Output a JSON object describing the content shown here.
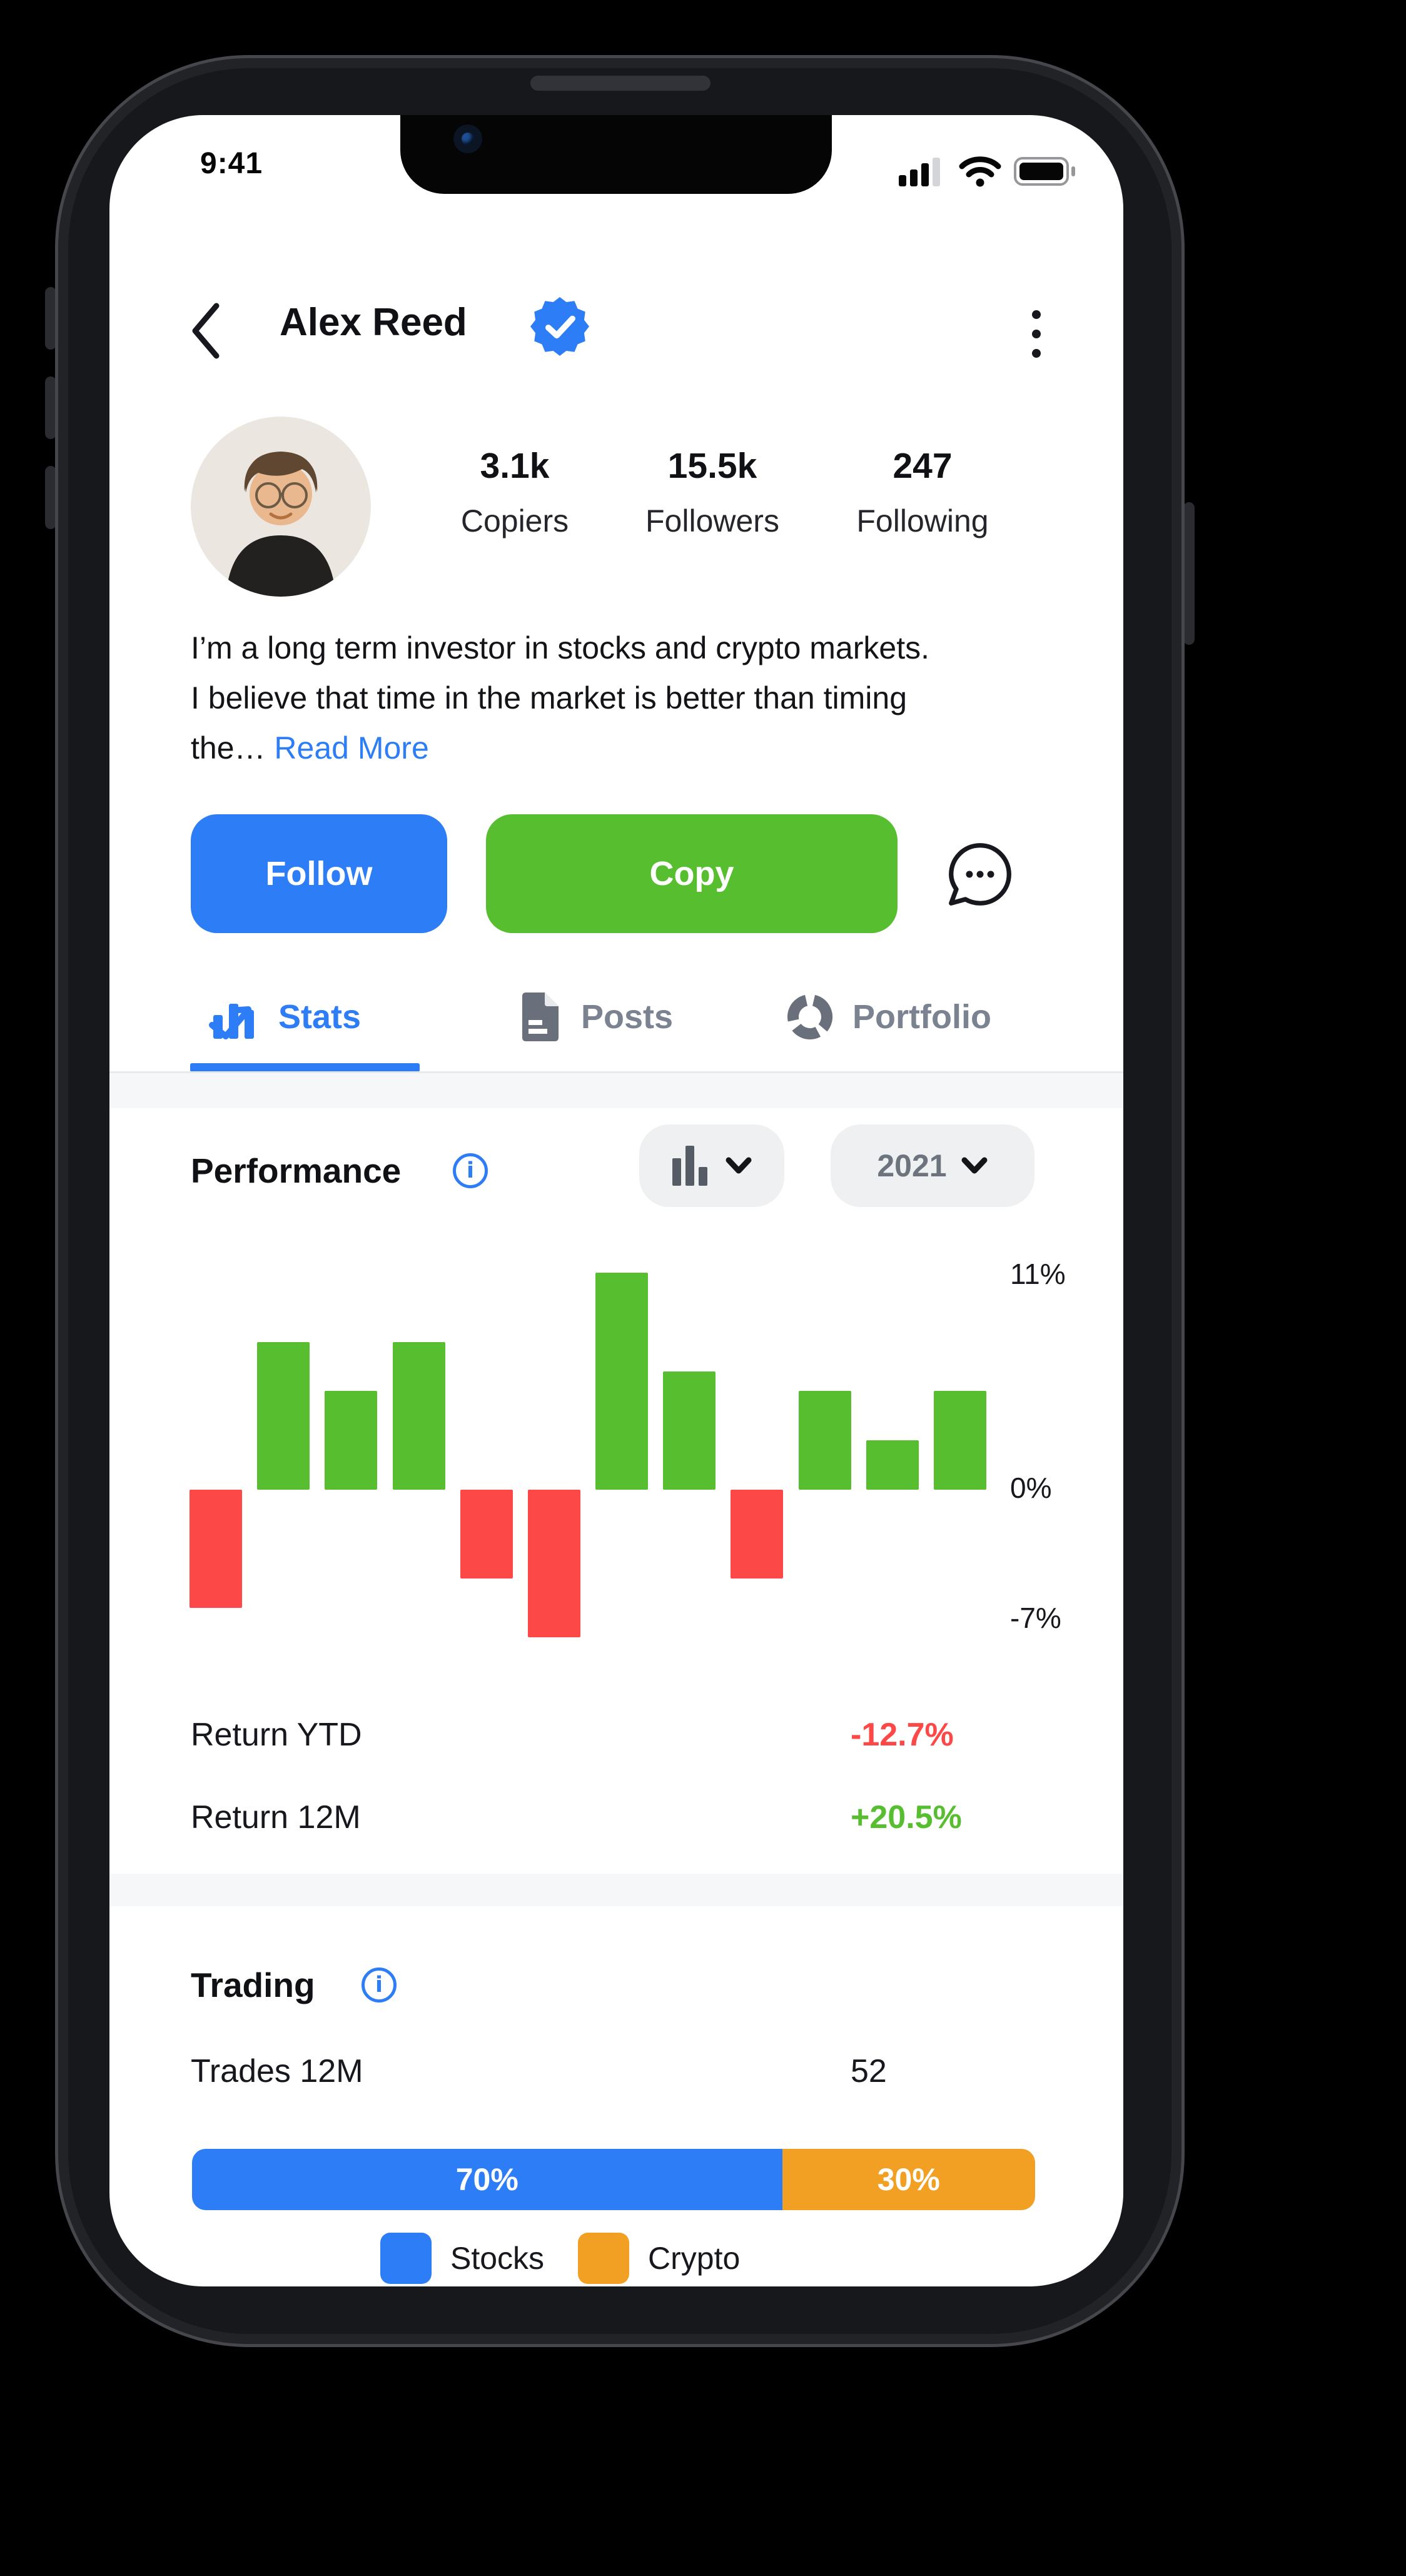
{
  "colors": {
    "accent_blue": "#2d7df6",
    "positive_green": "#57be2f",
    "negative_red": "#fd4848",
    "crypto_orange": "#f2a024",
    "inactive_gray": "#7b8290"
  },
  "status_bar": {
    "time": "9:41",
    "icons": [
      "cellular-signal-icon",
      "wifi-icon",
      "battery-icon"
    ]
  },
  "header": {
    "title": "Alex Reed",
    "verified": true,
    "icons": [
      "back-chevron-icon",
      "verified-badge-icon",
      "kebab-menu-icon"
    ]
  },
  "profile": {
    "stats": [
      {
        "value": "3.1k",
        "label": "Copiers"
      },
      {
        "value": "15.5k",
        "label": "Followers"
      },
      {
        "value": "247",
        "label": "Following"
      }
    ],
    "bio": "I’m a long term investor in stocks and crypto markets. I believe that time in the market is better than timing the…",
    "read_more": "Read More"
  },
  "actions": {
    "follow_label": "Follow",
    "copy_label": "Copy",
    "message_icon": "message-bubble-icon"
  },
  "tabs": [
    {
      "label": "Stats",
      "icon": "stats-icon",
      "active": true
    },
    {
      "label": "Posts",
      "icon": "posts-icon",
      "active": false
    },
    {
      "label": "Portfolio",
      "icon": "portfolio-icon",
      "active": false
    }
  ],
  "performance": {
    "title": "Performance",
    "info_icon": "info-icon",
    "chart_type_selector": {
      "icon": "bar-chart-icon",
      "chevron": "chevron-down-icon"
    },
    "year_selector": {
      "value": "2021",
      "chevron": "chevron-down-icon"
    },
    "rows": [
      {
        "label": "Return YTD",
        "value": "-12.7%",
        "status": "negative"
      },
      {
        "label": "Return 12M",
        "value": "+20.5%",
        "status": "positive"
      }
    ]
  },
  "chart_data": {
    "type": "bar",
    "title": "Performance 2021 monthly returns",
    "values": [
      -6,
      7.5,
      5,
      7.5,
      -4.5,
      -7.5,
      11,
      6,
      -4.5,
      5,
      2.5,
      5
    ],
    "ylabel": "%",
    "ylim": [
      -7.7,
      11.3
    ],
    "yticks": [
      {
        "label": "11%",
        "value": 11
      },
      {
        "label": "0%",
        "value": 0
      },
      {
        "label": "-7%",
        "value": -7
      }
    ],
    "grid": false,
    "legend": false,
    "positive_color": "#57be2f",
    "negative_color": "#fd4848"
  },
  "trading": {
    "title": "Trading",
    "info_icon": "info-icon",
    "rows": [
      {
        "label": "Trades 12M",
        "value": "52"
      }
    ],
    "allocation": {
      "type": "stacked-bar",
      "segments": [
        {
          "label": "Stocks",
          "value": 70,
          "value_label": "70%",
          "color": "#2d7df6"
        },
        {
          "label": "Crypto",
          "value": 30,
          "value_label": "30%",
          "color": "#f2a024"
        }
      ]
    }
  }
}
